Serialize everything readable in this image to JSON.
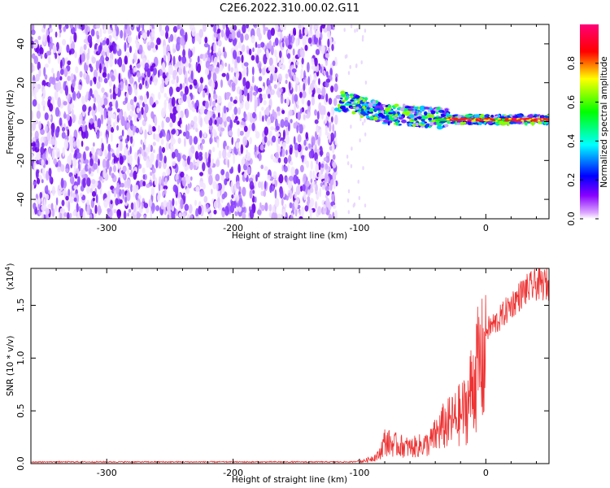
{
  "figure_title": "C2E6.2022.310.00.02.G11",
  "chart_data": [
    {
      "type": "heatmap",
      "name": "spectrogram",
      "xlabel": "Height of straight line (km)",
      "ylabel": "Frequency (Hz)",
      "xlim": [
        -360,
        50
      ],
      "ylim": [
        -50,
        50
      ],
      "xticks": [
        -300,
        -200,
        -100,
        0
      ],
      "xtick_labels": [
        "-300",
        "-200",
        "-100",
        "0"
      ],
      "yticks": [
        -40,
        -20,
        0,
        20,
        40
      ],
      "ytick_labels": [
        "-40",
        "-20",
        "0",
        "20",
        "40"
      ],
      "noise_region_x": [
        -360,
        -118
      ],
      "signal_track": {
        "x": [
          -118,
          -100,
          -80,
          -60,
          -40,
          -20,
          0,
          20,
          50
        ],
        "frequency_hz": [
          11,
          8,
          4,
          3,
          2,
          1,
          1,
          1,
          1
        ]
      },
      "colorbar": {
        "label": "Normalized spectral amplitude",
        "range": [
          0.0,
          1.0
        ],
        "ticks": [
          0.0,
          0.2,
          0.4,
          0.6,
          0.8
        ],
        "tick_labels": [
          "0.0",
          "0.2",
          "0.4",
          "0.6",
          "0.8"
        ],
        "colormap": [
          "#ffffff",
          "#ddaaff",
          "#8800ff",
          "#0000ff",
          "#00ffff",
          "#00ff00",
          "#ffff00",
          "#ff0000",
          "#ff0077"
        ]
      }
    },
    {
      "type": "line",
      "name": "snr",
      "xlabel": "Height of straight line (km)",
      "ylabel": "SNR (10 * v/v)",
      "scale_label": "(x10",
      "scale_exponent": "4",
      "scale_close": ")",
      "xlim": [
        -360,
        50
      ],
      "ylim": [
        0,
        1.85
      ],
      "xticks": [
        -300,
        -200,
        -100,
        0
      ],
      "xtick_labels": [
        "-300",
        "-200",
        "-100",
        "0"
      ],
      "yticks": [
        0.0,
        0.5,
        1.0,
        1.5
      ],
      "ytick_labels": [
        "0.0",
        "0.5",
        "1.0",
        "1.5"
      ],
      "color": "#ee3333",
      "envelope": {
        "x": [
          -360,
          -105,
          -95,
          -85,
          -80,
          -75,
          -60,
          -45,
          -35,
          -25,
          -15,
          -10,
          -5,
          0,
          10,
          20,
          30,
          40,
          50
        ],
        "y": [
          0.01,
          0.01,
          0.04,
          0.1,
          0.28,
          0.25,
          0.2,
          0.25,
          0.45,
          0.55,
          0.7,
          1.05,
          1.25,
          1.3,
          1.4,
          1.55,
          1.68,
          1.75,
          1.75
        ]
      }
    }
  ]
}
